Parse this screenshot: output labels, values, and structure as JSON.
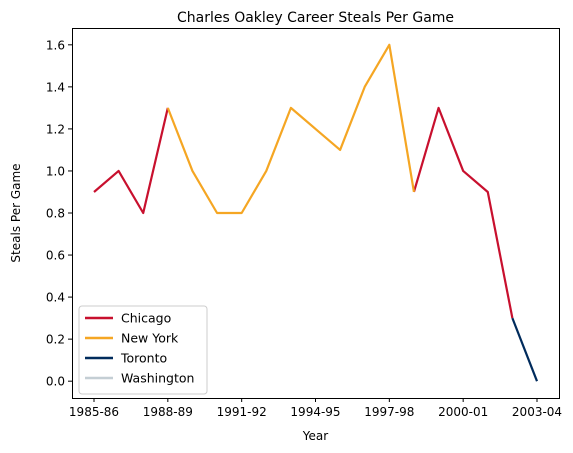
{
  "chart_data": {
    "type": "line",
    "title": "Charles Oakley Career Steals Per Game",
    "xlabel": "Year",
    "ylabel": "Steals Per Game",
    "x_categories": [
      "1985-86",
      "1986-87",
      "1987-88",
      "1988-89",
      "1989-90",
      "1990-91",
      "1991-92",
      "1992-93",
      "1993-94",
      "1994-95",
      "1995-96",
      "1996-97",
      "1997-98",
      "1998-99",
      "1999-00",
      "2000-01",
      "2001-02",
      "2002-03",
      "2003-04"
    ],
    "x_tick_labels": [
      "1985-86",
      "1988-89",
      "1991-92",
      "1994-95",
      "1997-98",
      "2000-01",
      "2003-04"
    ],
    "y_ticks": [
      "0.0",
      "0.2",
      "0.4",
      "0.6",
      "0.8",
      "1.0",
      "1.2",
      "1.4",
      "1.6"
    ],
    "ylim": [
      -0.08,
      1.68
    ],
    "grid": false,
    "legend_position": "lower-left",
    "series": [
      {
        "name": "Chicago",
        "color": "#c8102e",
        "segments": [
          {
            "x": [
              "1985-86",
              "1986-87",
              "1987-88",
              "1988-89"
            ],
            "y": [
              0.9,
              1.0,
              0.8,
              1.3
            ]
          },
          {
            "x": [
              "1998-99",
              "1999-00",
              "2000-01",
              "2001-02",
              "2002-03"
            ],
            "y": [
              0.9,
              1.3,
              1.0,
              0.9,
              0.3
            ]
          }
        ]
      },
      {
        "name": "New York",
        "color": "#f5a623",
        "segments": [
          {
            "x": [
              "1988-89",
              "1989-90",
              "1990-91",
              "1991-92",
              "1992-93",
              "1993-94",
              "1994-95",
              "1995-96",
              "1996-97",
              "1997-98",
              "1998-99"
            ],
            "y": [
              1.3,
              1.0,
              0.8,
              0.8,
              1.0,
              1.3,
              1.2,
              1.1,
              1.4,
              1.6,
              0.9
            ]
          }
        ]
      },
      {
        "name": "Toronto",
        "color": "#002b5c",
        "segments": [
          {
            "x": [
              "2002-03",
              "2003-04"
            ],
            "y": [
              0.3,
              0.0
            ]
          }
        ]
      },
      {
        "name": "Washington",
        "color": "#c4ced4",
        "segments": []
      }
    ]
  }
}
